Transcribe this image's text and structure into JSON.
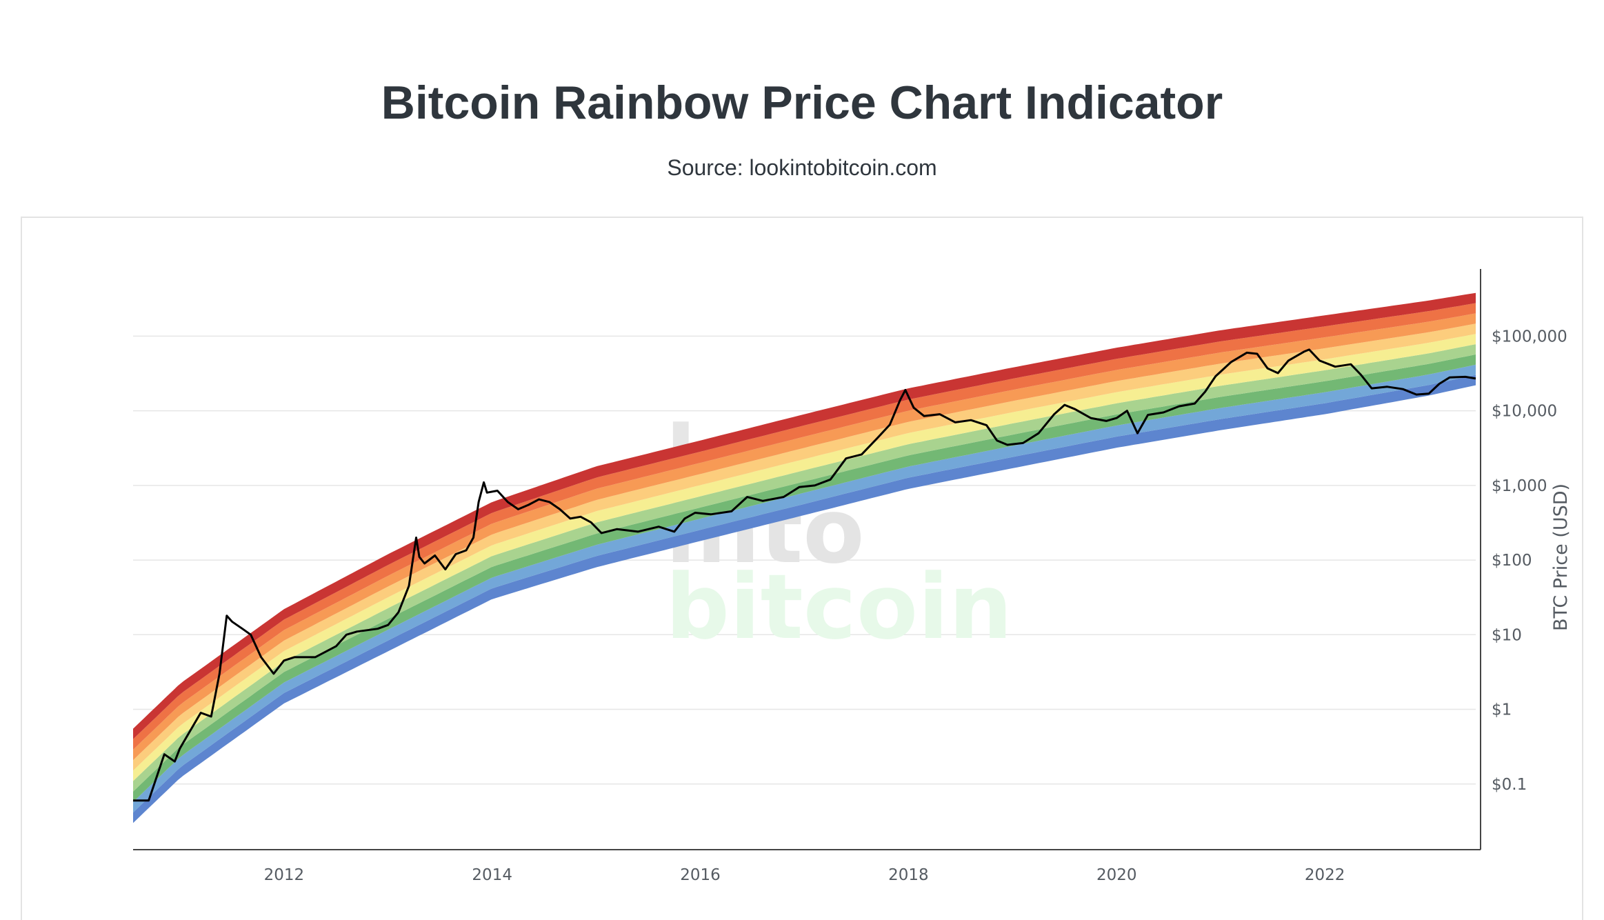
{
  "header": {
    "title": "Bitcoin Rainbow Price Chart Indicator",
    "subtitle": "Source: lookintobitcoin.com"
  },
  "watermark": {
    "line1": "look",
    "line2": "into",
    "line3": "bitcoin"
  },
  "chart_data": {
    "type": "area",
    "ylabel": "BTC Price (USD)",
    "yscale": "log",
    "xlim": [
      2010.55,
      2023.45
    ],
    "ylim_log10": [
      -1.88,
      5.9
    ],
    "x_ticks": [
      2012,
      2014,
      2016,
      2018,
      2020,
      2022
    ],
    "x_tick_labels": [
      "2012",
      "2014",
      "2016",
      "2018",
      "2020",
      "2022"
    ],
    "y_ticks": [
      0.1,
      1,
      10,
      100,
      1000,
      10000,
      100000
    ],
    "y_tick_labels": [
      "$0.1",
      "$1",
      "$10",
      "$100",
      "$1,000",
      "$10,000",
      "$100,000"
    ],
    "grid": true,
    "rainbow_bands": {
      "colors": [
        "#5d85cf",
        "#73a7d8",
        "#73b874",
        "#a9d38f",
        "#f6ee92",
        "#fccd7d",
        "#f79a55",
        "#ee7245",
        "#c93533"
      ],
      "bottom_points": [
        [
          2010.55,
          0.03
        ],
        [
          2011,
          0.12
        ],
        [
          2012,
          1.2
        ],
        [
          2013,
          6
        ],
        [
          2014,
          30
        ],
        [
          2015,
          80
        ],
        [
          2016,
          180
        ],
        [
          2017,
          400
        ],
        [
          2018,
          900
        ],
        [
          2019,
          1700
        ],
        [
          2020,
          3200
        ],
        [
          2021,
          5500
        ],
        [
          2022,
          9000
        ],
        [
          2023,
          16000
        ],
        [
          2023.45,
          22000
        ]
      ],
      "top_points": [
        [
          2010.55,
          0.55
        ],
        [
          2011,
          2.2
        ],
        [
          2012,
          22
        ],
        [
          2013,
          120
        ],
        [
          2014,
          600
        ],
        [
          2015,
          1800
        ],
        [
          2016,
          4000
        ],
        [
          2017,
          9000
        ],
        [
          2018,
          20000
        ],
        [
          2019,
          38000
        ],
        [
          2020,
          70000
        ],
        [
          2021,
          120000
        ],
        [
          2022,
          190000
        ],
        [
          2023,
          300000
        ],
        [
          2023.45,
          380000
        ]
      ]
    },
    "series": [
      {
        "name": "BTC Price",
        "color": "#000000",
        "points": [
          [
            2010.55,
            0.06
          ],
          [
            2010.7,
            0.06
          ],
          [
            2010.85,
            0.25
          ],
          [
            2010.95,
            0.2
          ],
          [
            2011.0,
            0.3
          ],
          [
            2011.2,
            0.9
          ],
          [
            2011.3,
            0.8
          ],
          [
            2011.38,
            3
          ],
          [
            2011.45,
            18
          ],
          [
            2011.5,
            15
          ],
          [
            2011.6,
            12
          ],
          [
            2011.68,
            10
          ],
          [
            2011.78,
            5
          ],
          [
            2011.9,
            3
          ],
          [
            2012.0,
            4.5
          ],
          [
            2012.1,
            5
          ],
          [
            2012.3,
            5
          ],
          [
            2012.5,
            7
          ],
          [
            2012.6,
            10
          ],
          [
            2012.7,
            11
          ],
          [
            2012.9,
            12
          ],
          [
            2013.0,
            13.5
          ],
          [
            2013.1,
            20
          ],
          [
            2013.2,
            45
          ],
          [
            2013.27,
            200
          ],
          [
            2013.3,
            110
          ],
          [
            2013.35,
            90
          ],
          [
            2013.45,
            115
          ],
          [
            2013.55,
            75
          ],
          [
            2013.65,
            120
          ],
          [
            2013.75,
            135
          ],
          [
            2013.82,
            200
          ],
          [
            2013.87,
            600
          ],
          [
            2013.92,
            1100
          ],
          [
            2013.95,
            800
          ],
          [
            2014.05,
            850
          ],
          [
            2014.15,
            600
          ],
          [
            2014.25,
            480
          ],
          [
            2014.35,
            550
          ],
          [
            2014.45,
            650
          ],
          [
            2014.55,
            600
          ],
          [
            2014.65,
            480
          ],
          [
            2014.75,
            360
          ],
          [
            2014.85,
            380
          ],
          [
            2014.95,
            320
          ],
          [
            2015.05,
            230
          ],
          [
            2015.2,
            260
          ],
          [
            2015.4,
            240
          ],
          [
            2015.6,
            280
          ],
          [
            2015.75,
            240
          ],
          [
            2015.85,
            360
          ],
          [
            2015.95,
            430
          ],
          [
            2016.1,
            410
          ],
          [
            2016.3,
            450
          ],
          [
            2016.45,
            700
          ],
          [
            2016.6,
            620
          ],
          [
            2016.8,
            700
          ],
          [
            2016.95,
            950
          ],
          [
            2017.1,
            1000
          ],
          [
            2017.25,
            1200
          ],
          [
            2017.4,
            2300
          ],
          [
            2017.55,
            2600
          ],
          [
            2017.7,
            4300
          ],
          [
            2017.82,
            6500
          ],
          [
            2017.92,
            14000
          ],
          [
            2017.97,
            19000
          ],
          [
            2018.05,
            11000
          ],
          [
            2018.15,
            8500
          ],
          [
            2018.3,
            9000
          ],
          [
            2018.45,
            7000
          ],
          [
            2018.6,
            7500
          ],
          [
            2018.75,
            6400
          ],
          [
            2018.85,
            4000
          ],
          [
            2018.95,
            3500
          ],
          [
            2019.1,
            3700
          ],
          [
            2019.25,
            5000
          ],
          [
            2019.4,
            9000
          ],
          [
            2019.5,
            12000
          ],
          [
            2019.6,
            10500
          ],
          [
            2019.75,
            8000
          ],
          [
            2019.9,
            7300
          ],
          [
            2020.0,
            8000
          ],
          [
            2020.1,
            10000
          ],
          [
            2020.2,
            5000
          ],
          [
            2020.3,
            8800
          ],
          [
            2020.45,
            9500
          ],
          [
            2020.6,
            11500
          ],
          [
            2020.75,
            12500
          ],
          [
            2020.85,
            18000
          ],
          [
            2020.95,
            29000
          ],
          [
            2021.1,
            45000
          ],
          [
            2021.25,
            60000
          ],
          [
            2021.35,
            58000
          ],
          [
            2021.45,
            37000
          ],
          [
            2021.55,
            32000
          ],
          [
            2021.65,
            47000
          ],
          [
            2021.8,
            62000
          ],
          [
            2021.85,
            66000
          ],
          [
            2021.95,
            47000
          ],
          [
            2022.1,
            39000
          ],
          [
            2022.25,
            42000
          ],
          [
            2022.35,
            30000
          ],
          [
            2022.45,
            20000
          ],
          [
            2022.6,
            21000
          ],
          [
            2022.75,
            19500
          ],
          [
            2022.88,
            16500
          ],
          [
            2023.0,
            17000
          ],
          [
            2023.1,
            23000
          ],
          [
            2023.2,
            28000
          ],
          [
            2023.35,
            28500
          ],
          [
            2023.45,
            27000
          ]
        ]
      }
    ]
  }
}
